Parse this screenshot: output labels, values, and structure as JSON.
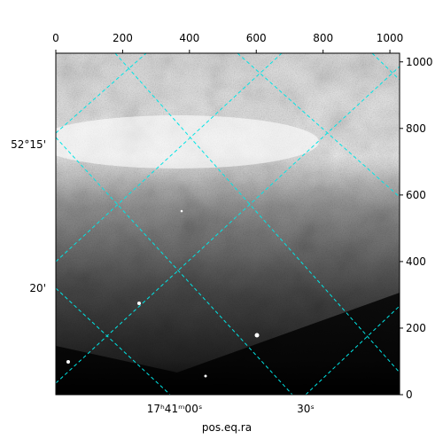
{
  "chart_data": {
    "type": "image",
    "xlabel": "pos.eq.ra",
    "xlim": [
      0,
      1029
    ],
    "ylim": [
      0,
      1026
    ],
    "xticks": [
      0,
      200,
      400,
      600,
      800,
      1000
    ],
    "yticks": [
      0,
      200,
      400,
      600,
      800,
      1000
    ],
    "wcs_left_labels": [
      "52°15'",
      "20'"
    ],
    "wcs_bottom_labels": [
      "17ʰ41ᵐ00ˢ",
      "30ˢ"
    ]
  }
}
